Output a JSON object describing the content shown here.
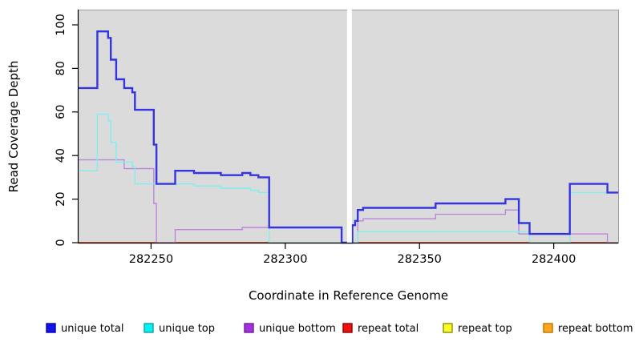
{
  "chart_data": {
    "type": "line",
    "step": true,
    "title": "",
    "xlabel": "Coordinate in Reference Genome",
    "ylabel": "Read Coverage Depth",
    "xlim": [
      282223,
      282424
    ],
    "ylim": [
      0,
      100
    ],
    "x_ticks": [
      282250,
      282300,
      282350,
      282400
    ],
    "y_ticks": [
      0,
      20,
      40,
      60,
      80,
      100
    ],
    "grid": false,
    "plot_bg_color": "#DBDBDB",
    "plot_border_color": "#9C9C9C",
    "axis_color": "#000000",
    "gap_band": {
      "from": 282323,
      "to": 282324.8,
      "color": "#FFFFFF"
    },
    "legend_position": "bottom",
    "series": [
      {
        "name": "unique total",
        "color": "#3434E2",
        "legend_fill": "#1414E6",
        "legend_border": "#0000B8",
        "line_width": 2.4,
        "points": [
          [
            282223,
            71
          ],
          [
            282230,
            97
          ],
          [
            282234,
            94
          ],
          [
            282235,
            84
          ],
          [
            282237,
            75
          ],
          [
            282240,
            71
          ],
          [
            282243,
            69
          ],
          [
            282244,
            61
          ],
          [
            282251,
            45
          ],
          [
            282252,
            27
          ],
          [
            282259,
            33
          ],
          [
            282266,
            32
          ],
          [
            282276,
            31
          ],
          [
            282284,
            32
          ],
          [
            282287,
            31
          ],
          [
            282290,
            30
          ],
          [
            282294,
            7
          ],
          [
            282321,
            0
          ],
          [
            282325,
            8
          ],
          [
            282326,
            10
          ],
          [
            282327,
            15
          ],
          [
            282329,
            16
          ],
          [
            282356,
            18
          ],
          [
            282382,
            20
          ],
          [
            282387,
            9
          ],
          [
            282391,
            4
          ],
          [
            282406,
            27
          ],
          [
            282420,
            23
          ],
          [
            282424,
            23
          ]
        ]
      },
      {
        "name": "unique top",
        "color": "#80EDEE",
        "legend_fill": "#00F2F2",
        "legend_border": "#1B9E9E",
        "line_width": 1.4,
        "points": [
          [
            282223,
            33
          ],
          [
            282230,
            59
          ],
          [
            282234,
            56
          ],
          [
            282235,
            46
          ],
          [
            282237,
            37
          ],
          [
            282243,
            35
          ],
          [
            282244,
            27
          ],
          [
            282266,
            26
          ],
          [
            282276,
            25
          ],
          [
            282287,
            24
          ],
          [
            282290,
            23
          ],
          [
            282294,
            0
          ],
          [
            282327,
            5
          ],
          [
            282391,
            0
          ],
          [
            282406,
            23
          ],
          [
            282424,
            23
          ]
        ]
      },
      {
        "name": "unique bottom",
        "color": "#BD85DD",
        "legend_fill": "#A431E0",
        "legend_border": "#6E1F96",
        "line_width": 1.4,
        "points": [
          [
            282223,
            38
          ],
          [
            282240,
            34
          ],
          [
            282251,
            18
          ],
          [
            282252,
            0
          ],
          [
            282259,
            6
          ],
          [
            282284,
            7
          ],
          [
            282321,
            0
          ],
          [
            282327,
            10
          ],
          [
            282329,
            11
          ],
          [
            282356,
            13
          ],
          [
            282382,
            15
          ],
          [
            282387,
            4
          ],
          [
            282420,
            0
          ],
          [
            282424,
            0
          ]
        ]
      },
      {
        "name": "repeat total",
        "color": "#DD2222",
        "legend_fill": "#EE1111",
        "legend_border": "#8F0000",
        "line_width": 1.4,
        "points": [
          [
            282223,
            0
          ],
          [
            282424,
            0
          ]
        ]
      },
      {
        "name": "repeat top",
        "color": "#F2F23A",
        "legend_fill": "#FBFB2A",
        "legend_border": "#8F8F00",
        "line_width": 1.4,
        "points": [
          [
            282223,
            0
          ],
          [
            282424,
            0
          ]
        ]
      },
      {
        "name": "repeat bottom",
        "color": "#FFA51E",
        "legend_fill": "#FFA51E",
        "legend_border": "#B87400",
        "line_width": 1.6,
        "points": [
          [
            282223,
            0
          ],
          [
            282424,
            0
          ]
        ]
      }
    ]
  },
  "legend": {
    "items": [
      "unique total",
      "unique top",
      "unique bottom",
      "repeat total",
      "repeat top",
      "repeat bottom"
    ]
  }
}
